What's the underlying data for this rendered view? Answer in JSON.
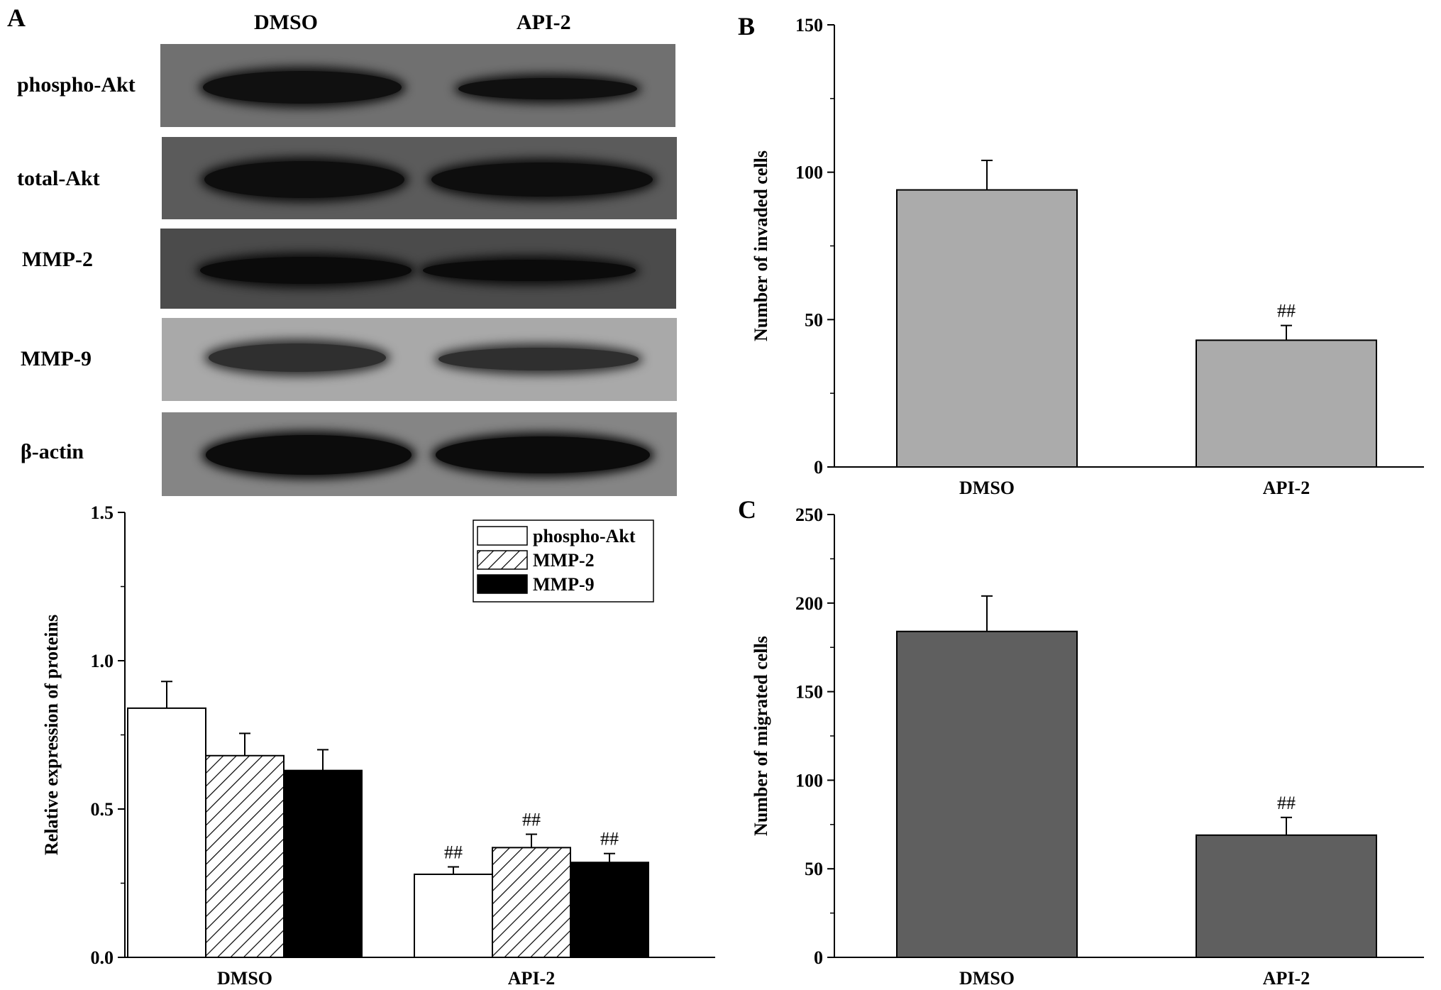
{
  "panels": {
    "a": "A",
    "b": "B",
    "c": "C"
  },
  "blot": {
    "columns": [
      "DMSO",
      "API-2"
    ],
    "rows": [
      {
        "label": "phospho-Akt",
        "bg": "#707070",
        "band": "#101010"
      },
      {
        "label": "total-Akt",
        "bg": "#5b5b5b",
        "band": "#0e0e0e"
      },
      {
        "label": "MMP-2",
        "bg": "#4b4b4b",
        "band": "#0b0b0b"
      },
      {
        "label": "MMP-9",
        "bg": "#a9a9a9",
        "band": "#2f2f2f"
      },
      {
        "label": "β-actin",
        "bg": "#858585",
        "band": "#0c0c0c"
      }
    ]
  },
  "chart_data": [
    {
      "id": "A",
      "type": "bar",
      "categories": [
        "DMSO",
        "API-2"
      ],
      "series": [
        {
          "name": "phospho-Akt",
          "values": [
            0.84,
            0.28
          ],
          "errors": [
            0.09,
            0.025
          ],
          "fill": "white",
          "annotations": [
            "",
            "##"
          ]
        },
        {
          "name": "MMP-2",
          "values": [
            0.68,
            0.37
          ],
          "errors": [
            0.075,
            0.045
          ],
          "fill": "hatch",
          "annotations": [
            "",
            "##"
          ]
        },
        {
          "name": "MMP-9",
          "values": [
            0.63,
            0.32
          ],
          "errors": [
            0.07,
            0.03
          ],
          "fill": "black",
          "annotations": [
            "",
            "##"
          ]
        }
      ],
      "ylabel": "Relative expression of proteins",
      "ylim": [
        0,
        1.5
      ],
      "yticks": [
        "0.0",
        "0.5",
        "1.0",
        "1.5"
      ],
      "legend": "top-right"
    },
    {
      "id": "B",
      "type": "bar",
      "categories": [
        "DMSO",
        "API-2"
      ],
      "series": [
        {
          "values": [
            94,
            43
          ],
          "errors": [
            10,
            5
          ],
          "fill": "#ababab",
          "annotations": [
            "",
            "##"
          ]
        }
      ],
      "ylabel": "Number of invaded cells",
      "ylim": [
        0,
        150
      ],
      "yticks": [
        "0",
        "50",
        "100",
        "150"
      ]
    },
    {
      "id": "C",
      "type": "bar",
      "categories": [
        "DMSO",
        "API-2"
      ],
      "series": [
        {
          "values": [
            184,
            69
          ],
          "errors": [
            20,
            10
          ],
          "fill": "#5f5f5f",
          "annotations": [
            "",
            "##"
          ]
        }
      ],
      "ylabel": "Number of migrated cells",
      "ylim": [
        0,
        250
      ],
      "yticks": [
        "0",
        "50",
        "100",
        "150",
        "200",
        "250"
      ]
    }
  ]
}
